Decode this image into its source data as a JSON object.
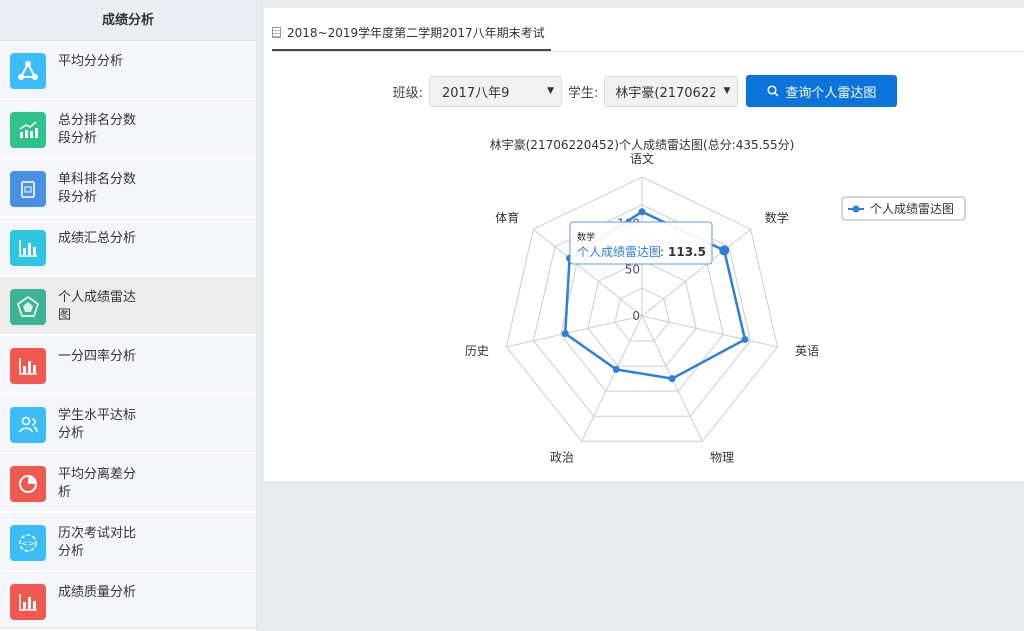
{
  "sidebar": {
    "title": "成绩分析",
    "items": [
      {
        "label": "平均分分析",
        "icon": "triangle-nodes-icon",
        "color": "#3cbcf8"
      },
      {
        "label": "总分排名分数段分析",
        "icon": "trend-bars-icon",
        "color": "#2fc28b"
      },
      {
        "label": "单科排名分数段分析",
        "icon": "book-icon",
        "color": "#4a90e2"
      },
      {
        "label": "成绩汇总分析",
        "icon": "bar-chart-icon",
        "color": "#2ec5e0"
      },
      {
        "label": "个人成绩雷达图",
        "icon": "radar-icon",
        "color": "#3db295",
        "active": true
      },
      {
        "label": "一分四率分析",
        "icon": "bar-chart-icon",
        "color": "#ef5a50"
      },
      {
        "label": "学生水平达标分析",
        "icon": "users-icon",
        "color": "#3cbcf8"
      },
      {
        "label": "平均分离差分析",
        "icon": "pie-icon",
        "color": "#ef5a50"
      },
      {
        "label": "历次考试对比分析",
        "icon": "compare-icon",
        "color": "#3cbcf8"
      },
      {
        "label": "成绩质量分析",
        "icon": "bar-chart-icon",
        "color": "#ef5a50"
      }
    ]
  },
  "tab": {
    "label": "2018~2019学年度第二学期2017八年期末考试"
  },
  "controls": {
    "class_label": "班级:",
    "class_value": "2017八年9",
    "student_label": "学生:",
    "student_value": "林宇豪(21706220452)",
    "query_button": "查询个人雷达图"
  },
  "chart_data": {
    "type": "radar",
    "title": "林宇豪(21706220452)个人成绩雷达图(总分:435.55分)",
    "indicators": [
      "语文",
      "数学",
      "英语",
      "物理",
      "政治",
      "历史",
      "体育"
    ],
    "max": 150,
    "tick_labels": [
      "0",
      "50",
      "100"
    ],
    "ticks": [
      0,
      50,
      100
    ],
    "series": [
      {
        "name": "个人成绩雷达图",
        "values": [
          112.5,
          113.5,
          114,
          75,
          64,
          85,
          100
        ],
        "color": "#2f7ed8"
      }
    ],
    "legend": "top-right",
    "tooltip": {
      "category": "数学",
      "series": "个人成绩雷达图",
      "value": "113.5"
    }
  }
}
